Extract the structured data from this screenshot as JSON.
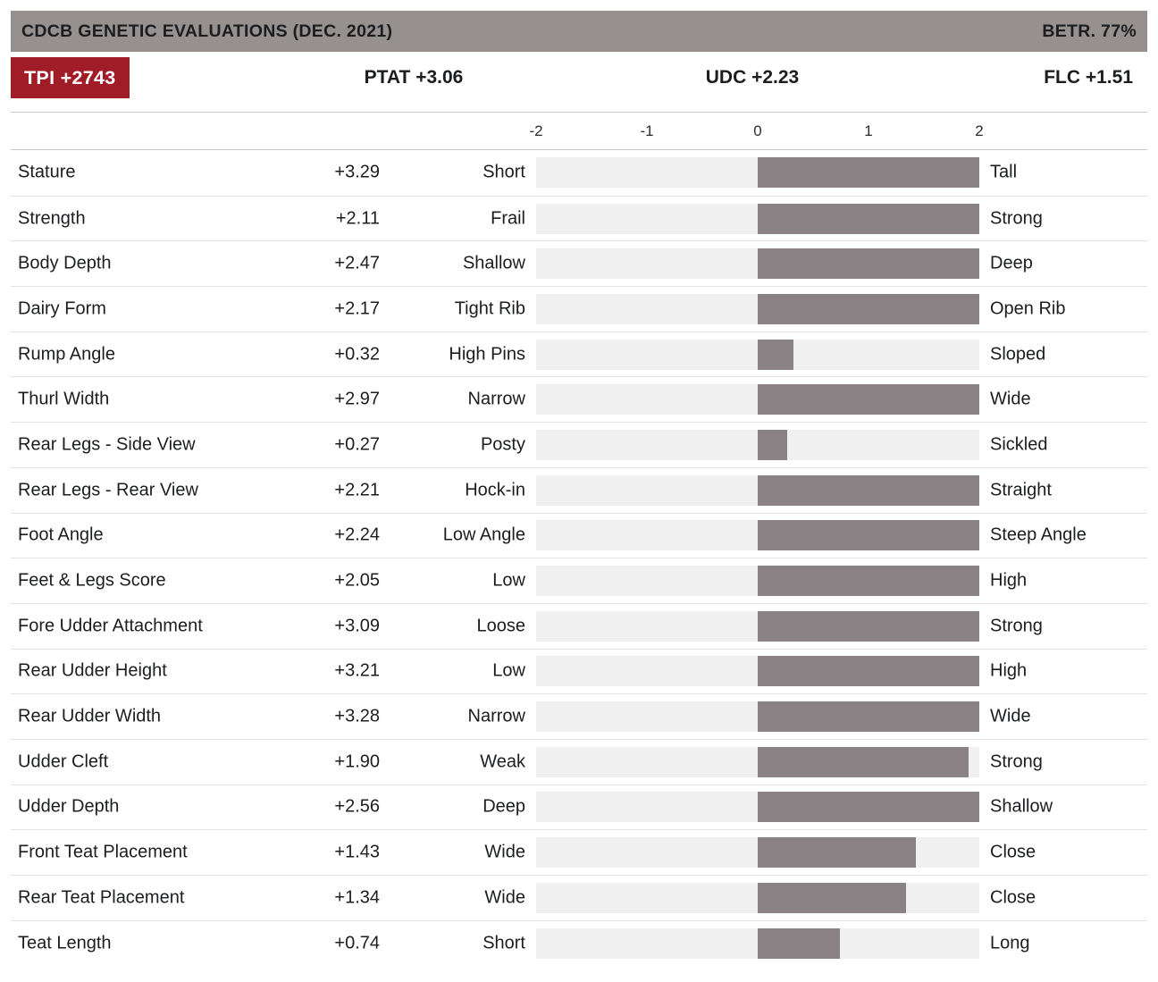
{
  "header": {
    "title": "CDCB GENETIC EVALUATIONS (DEC. 2021)",
    "reliability": "BETR. 77%"
  },
  "summary": {
    "tpi": "TPI +2743",
    "ptat": "PTAT +3.06",
    "udc": "UDC +2.23",
    "flc": "FLC +1.51"
  },
  "colors": {
    "header_bg": "#96908e",
    "badge_bg": "#a01d27",
    "bar_fill": "#8a8285",
    "track_bg": "#f1f0f0",
    "text_dark": "#1b1d20",
    "divider_strong": "#c9c9c9",
    "divider_light": "#e3e3e3"
  },
  "chart_data": {
    "type": "bar",
    "orientation": "horizontal",
    "title": "CDCB GENETIC EVALUATIONS (DEC. 2021)",
    "xlim": [
      -2,
      2
    ],
    "x_ticks": [
      -2,
      -1,
      0,
      1,
      2
    ],
    "bar_origin": 0,
    "clamped_to_axis": true,
    "grid": false,
    "legend": "none",
    "categories": [
      "Stature",
      "Strength",
      "Body Depth",
      "Dairy Form",
      "Rump Angle",
      "Thurl Width",
      "Rear Legs - Side View",
      "Rear Legs - Rear View",
      "Foot Angle",
      "Feet & Legs Score",
      "Fore Udder Attachment",
      "Rear Udder Height",
      "Rear Udder Width",
      "Udder Cleft",
      "Udder Depth",
      "Front Teat Placement",
      "Rear Teat Placement",
      "Teat Length"
    ],
    "values": [
      3.29,
      2.11,
      2.47,
      2.17,
      0.32,
      2.97,
      0.27,
      2.21,
      2.24,
      2.05,
      3.09,
      3.21,
      3.28,
      1.9,
      2.56,
      1.43,
      1.34,
      0.74
    ],
    "rows": [
      {
        "trait": "Stature",
        "value": 3.29,
        "display_value": "+3.29",
        "low_label": "Short",
        "high_label": "Tall"
      },
      {
        "trait": "Strength",
        "value": 2.11,
        "display_value": "+2.11",
        "low_label": "Frail",
        "high_label": "Strong"
      },
      {
        "trait": "Body Depth",
        "value": 2.47,
        "display_value": "+2.47",
        "low_label": "Shallow",
        "high_label": "Deep"
      },
      {
        "trait": "Dairy Form",
        "value": 2.17,
        "display_value": "+2.17",
        "low_label": "Tight Rib",
        "high_label": "Open Rib"
      },
      {
        "trait": "Rump Angle",
        "value": 0.32,
        "display_value": "+0.32",
        "low_label": "High Pins",
        "high_label": "Sloped"
      },
      {
        "trait": "Thurl Width",
        "value": 2.97,
        "display_value": "+2.97",
        "low_label": "Narrow",
        "high_label": "Wide"
      },
      {
        "trait": "Rear Legs - Side View",
        "value": 0.27,
        "display_value": "+0.27",
        "low_label": "Posty",
        "high_label": "Sickled"
      },
      {
        "trait": "Rear Legs - Rear View",
        "value": 2.21,
        "display_value": "+2.21",
        "low_label": "Hock-in",
        "high_label": "Straight"
      },
      {
        "trait": "Foot Angle",
        "value": 2.24,
        "display_value": "+2.24",
        "low_label": "Low Angle",
        "high_label": "Steep Angle"
      },
      {
        "trait": "Feet & Legs Score",
        "value": 2.05,
        "display_value": "+2.05",
        "low_label": "Low",
        "high_label": "High"
      },
      {
        "trait": "Fore Udder Attachment",
        "value": 3.09,
        "display_value": "+3.09",
        "low_label": "Loose",
        "high_label": "Strong"
      },
      {
        "trait": "Rear Udder Height",
        "value": 3.21,
        "display_value": "+3.21",
        "low_label": "Low",
        "high_label": "High"
      },
      {
        "trait": "Rear Udder Width",
        "value": 3.28,
        "display_value": "+3.28",
        "low_label": "Narrow",
        "high_label": "Wide"
      },
      {
        "trait": "Udder Cleft",
        "value": 1.9,
        "display_value": "+1.90",
        "low_label": "Weak",
        "high_label": "Strong"
      },
      {
        "trait": "Udder Depth",
        "value": 2.56,
        "display_value": "+2.56",
        "low_label": "Deep",
        "high_label": "Shallow"
      },
      {
        "trait": "Front Teat Placement",
        "value": 1.43,
        "display_value": "+1.43",
        "low_label": "Wide",
        "high_label": "Close"
      },
      {
        "trait": "Rear Teat Placement",
        "value": 1.34,
        "display_value": "+1.34",
        "low_label": "Wide",
        "high_label": "Close"
      },
      {
        "trait": "Teat Length",
        "value": 0.74,
        "display_value": "+0.74",
        "low_label": "Short",
        "high_label": "Long"
      }
    ]
  }
}
